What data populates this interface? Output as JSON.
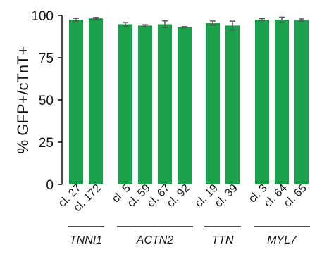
{
  "chart_data": {
    "type": "bar",
    "ylabel": "% GFP+/cTnT+",
    "ylim": [
      0,
      100
    ],
    "yticks": [
      "0",
      "25",
      "50",
      "75",
      "100"
    ],
    "bar_color": "#1aa24b",
    "error_color": "#555555",
    "categories": [
      "cl. 27",
      "cl. 172",
      "cl. 5",
      "cl. 59",
      "cl. 67",
      "cl. 92",
      "cl. 19",
      "cl. 39",
      "cl. 3",
      "cl. 64",
      "cl. 65"
    ],
    "values": [
      97.5,
      98.3,
      94.8,
      94.0,
      94.8,
      93.0,
      95.5,
      94.0,
      97.5,
      97.5,
      97.3
    ],
    "errors": [
      0.8,
      0.5,
      1.0,
      0.5,
      2.0,
      0.4,
      1.2,
      2.6,
      0.6,
      1.5,
      0.6
    ],
    "groups": [
      {
        "label": "TNNI1",
        "start": 0,
        "end": 1
      },
      {
        "label": "ACTN2",
        "start": 2,
        "end": 5
      },
      {
        "label": "TTN",
        "start": 6,
        "end": 7
      },
      {
        "label": "MYL7",
        "start": 8,
        "end": 10
      }
    ]
  }
}
